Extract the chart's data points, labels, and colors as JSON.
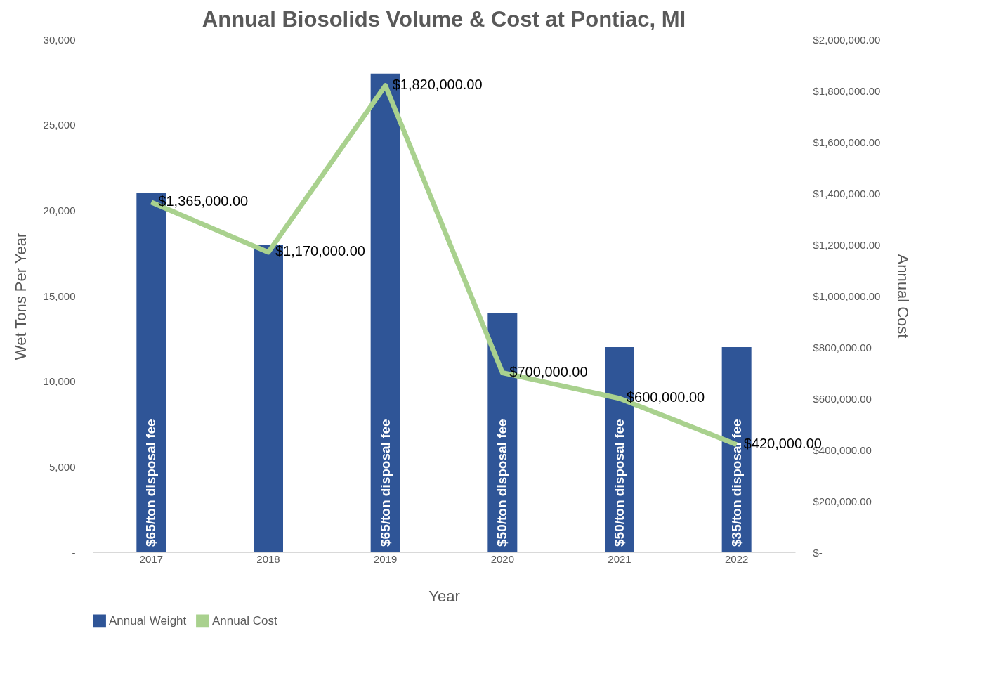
{
  "chart_data": {
    "type": "bar",
    "title": "Annual Biosolids Volume & Cost at Pontiac, MI",
    "xlabel": "Year",
    "ylabel": "Wet Tons Per Year",
    "y2label": "Annual Cost",
    "categories": [
      "2017",
      "2018",
      "2019",
      "2020",
      "2021",
      "2022"
    ],
    "series": [
      {
        "name": "Annual Weight",
        "color": "#2f5597",
        "values": [
          21000,
          18000,
          28000,
          14000,
          12000,
          12000
        ]
      },
      {
        "name": "Annual Cost",
        "type": "line",
        "axis": "y2",
        "color": "#a9d18e",
        "values": [
          1365000,
          1170000,
          1820000,
          700000,
          600000,
          420000
        ],
        "value_labels": [
          "$1,365,000.00",
          "$1,170,000.00",
          "$1,820,000.00",
          "$700,000.00",
          "$600,000.00",
          "$420,000.00"
        ]
      }
    ],
    "ylim": [
      0,
      30000
    ],
    "yticks": [
      {
        "value": 0,
        "label": "-"
      },
      {
        "value": 5000,
        "label": "5,000"
      },
      {
        "value": 10000,
        "label": "10,000"
      },
      {
        "value": 15000,
        "label": "15,000"
      },
      {
        "value": 20000,
        "label": "20,000"
      },
      {
        "value": 25000,
        "label": "25,000"
      },
      {
        "value": 30000,
        "label": "30,000"
      }
    ],
    "y2lim": [
      0,
      2000000
    ],
    "y2ticks": [
      {
        "value": 0,
        "label": "$-"
      },
      {
        "value": 200000,
        "label": "$200,000.00"
      },
      {
        "value": 400000,
        "label": "$400,000.00"
      },
      {
        "value": 600000,
        "label": "$600,000.00"
      },
      {
        "value": 800000,
        "label": "$800,000.00"
      },
      {
        "value": 1000000,
        "label": "$1,000,000.00"
      },
      {
        "value": 1200000,
        "label": "$1,200,000.00"
      },
      {
        "value": 1400000,
        "label": "$1,400,000.00"
      },
      {
        "value": 1600000,
        "label": "$1,600,000.00"
      },
      {
        "value": 1800000,
        "label": "$1,800,000.00"
      },
      {
        "value": 2000000,
        "label": "$2,000,000.00"
      }
    ],
    "annotations": [
      {
        "text": "$65/ton disposal fee",
        "x": "2017",
        "y": 0
      },
      {
        "text": "$65/ton disposal fee",
        "x": "2019",
        "y": 0
      },
      {
        "text": "$50/ton disposal fee",
        "x": "2020",
        "y": 0
      },
      {
        "text": "$50/ton disposal fee",
        "x": "2021",
        "y": 0
      },
      {
        "text": "$35/ton disposal fee",
        "x": "2022",
        "y": 0
      }
    ],
    "legend": "bottom",
    "grid": false
  }
}
